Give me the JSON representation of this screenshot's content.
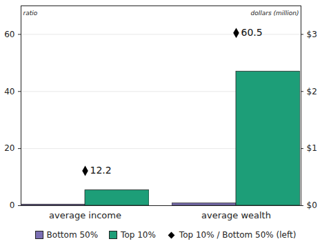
{
  "chart_data": {
    "type": "bar",
    "categories": [
      "average income",
      "average wealth"
    ],
    "series": [
      {
        "name": "Bottom 50%",
        "color": "#7b6fb3",
        "values": [
          0.02,
          0.04
        ],
        "axis": "y2"
      },
      {
        "name": "Top 10%",
        "color": "#1d9e78",
        "values": [
          0.27,
          2.35
        ],
        "axis": "y2"
      },
      {
        "name": "Top 10% / Bottom 50% (left)",
        "type": "scatter",
        "marker": "diamond",
        "color": "#000000",
        "values": [
          12.2,
          60.5
        ],
        "data_labels": true
      }
    ],
    "y_label": "ratio",
    "y2_label": "dollars (million)",
    "ylim": [
      0,
      70
    ],
    "yticks": [
      0,
      20,
      40,
      60
    ],
    "y2lim": [
      0,
      3.5
    ],
    "y2ticks": [
      {
        "value": 0,
        "label": "$0"
      },
      {
        "value": 1,
        "label": "$1"
      },
      {
        "value": 2,
        "label": "$2"
      },
      {
        "value": 3,
        "label": "$3"
      }
    ],
    "grid": true,
    "legend": "bottom"
  }
}
